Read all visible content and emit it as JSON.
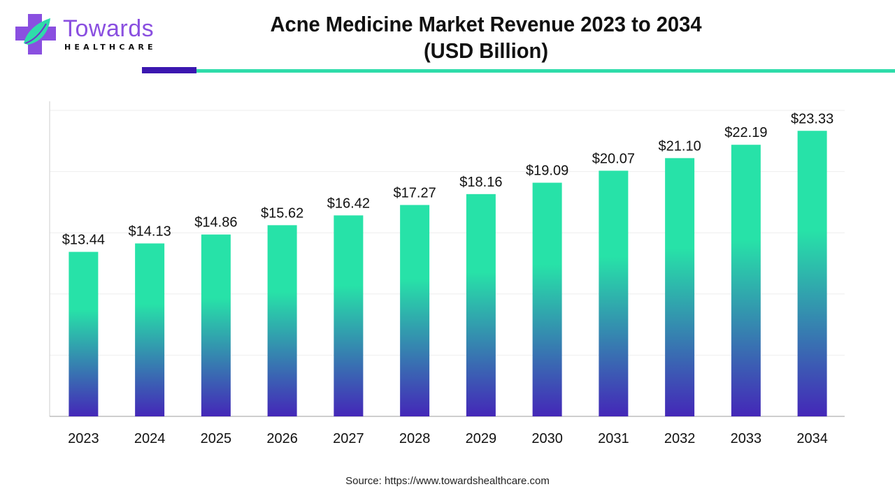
{
  "brand": {
    "name": "Towards",
    "tagline": "HEALTHCARE",
    "colors": {
      "purple": "#8a4fe0",
      "teal": "#2fdcaa",
      "dark": "#3b17b0"
    }
  },
  "header": {
    "title_line1": "Acne Medicine Market Revenue 2023 to 2034",
    "title_line2": "(USD Billion)"
  },
  "footer": {
    "source": "Source: https://www.towardshealthcare.com"
  },
  "chart_data": {
    "type": "bar",
    "title": "Acne Medicine Market Revenue 2023 to 2034 (USD Billion)",
    "xlabel": "",
    "ylabel": "",
    "categories": [
      "2023",
      "2024",
      "2025",
      "2026",
      "2027",
      "2028",
      "2029",
      "2030",
      "2031",
      "2032",
      "2033",
      "2034"
    ],
    "values": [
      13.44,
      14.13,
      14.86,
      15.62,
      16.42,
      17.27,
      18.16,
      19.09,
      20.07,
      21.1,
      22.19,
      23.33
    ],
    "data_labels": [
      "$13.44",
      "$14.13",
      "$14.86",
      "$15.62",
      "$16.42",
      "$17.27",
      "$18.16",
      "$19.09",
      "$20.07",
      "$21.10",
      "$22.19",
      "$23.33"
    ],
    "ylim": [
      0,
      25
    ],
    "gridlines": [
      5,
      10,
      15,
      20,
      25
    ],
    "grid": true,
    "legend": "none",
    "bar_gradient": {
      "top": "#27e2a8",
      "bottom": "#4427b8"
    }
  }
}
